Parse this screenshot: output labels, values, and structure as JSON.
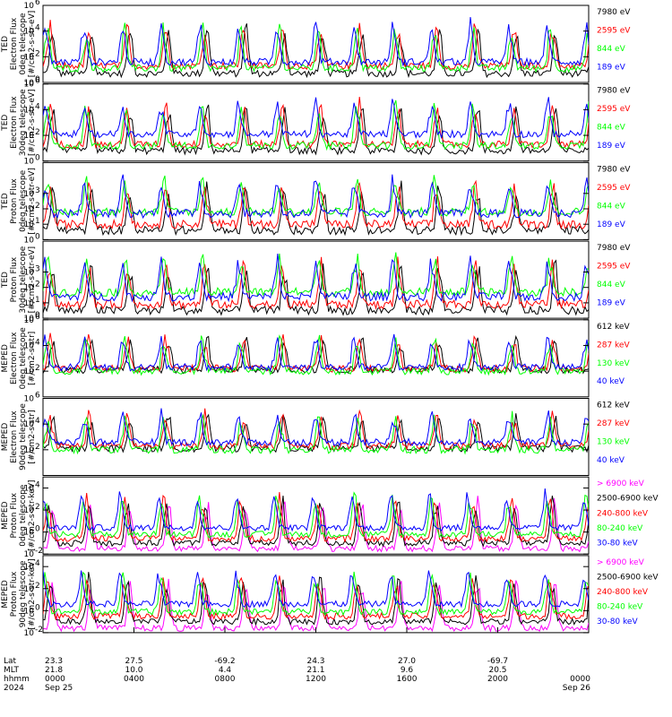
{
  "colors": {
    "black": "#000000",
    "red": "#ff0000",
    "green": "#00ff00",
    "blue": "#0000ff",
    "magenta": "#ff00ff"
  },
  "chart_data": [
    {
      "type": "line",
      "scale": "log",
      "ylim": [
        1,
        1000000
      ],
      "yticks": [
        "10",
        "10",
        "10",
        "10"
      ],
      "yexp": [
        "0",
        "2",
        "4",
        "6"
      ],
      "ylabel": [
        "TED",
        "Electron Flux",
        "0deg telescope",
        "[#/cm2-s-str-eV]"
      ],
      "series": [
        {
          "name": "7980 eV",
          "color": "#000000",
          "base": 0.7
        },
        {
          "name": "2595 eV",
          "color": "#ff0000",
          "base": 1.3
        },
        {
          "name": "844 eV",
          "color": "#00ff00",
          "base": 1.1
        },
        {
          "name": "189 eV",
          "color": "#0000ff",
          "base": 1.6
        }
      ]
    },
    {
      "type": "line",
      "scale": "log",
      "ylim": [
        1,
        1000000
      ],
      "yticks": [
        "10",
        "10",
        "10",
        "10"
      ],
      "yexp": [
        "0",
        "2",
        "4",
        "6"
      ],
      "ylabel": [
        "TED",
        "Electron Flux",
        "30deg telescope",
        "[#/cm2-s-str-eV]"
      ],
      "series": [
        {
          "name": "7980 eV",
          "color": "#000000",
          "base": 0.8
        },
        {
          "name": "2595 eV",
          "color": "#ff0000",
          "base": 1.3
        },
        {
          "name": "844 eV",
          "color": "#00ff00",
          "base": 1.2
        },
        {
          "name": "189 eV",
          "color": "#0000ff",
          "base": 2.1
        }
      ]
    },
    {
      "type": "line",
      "scale": "log",
      "ylim": [
        1,
        100000
      ],
      "yticks": [
        "10",
        "10",
        "10",
        "10"
      ],
      "yexp": [
        "0",
        "1",
        "2",
        "3"
      ],
      "ylabel": [
        "TED",
        "Proton Flux",
        "0deg telescope",
        "[#/cm2-s-str-eV]"
      ],
      "series": [
        {
          "name": "7980 eV",
          "color": "#000000",
          "base": 0.6
        },
        {
          "name": "2595 eV",
          "color": "#ff0000",
          "base": 1.0
        },
        {
          "name": "844 eV",
          "color": "#00ff00",
          "base": 1.8
        },
        {
          "name": "189 eV",
          "color": "#0000ff",
          "base": 1.7
        }
      ]
    },
    {
      "type": "line",
      "scale": "log",
      "ylim": [
        1,
        100000
      ],
      "yticks": [
        "10",
        "10",
        "10",
        "10"
      ],
      "yexp": [
        "0",
        "1",
        "2",
        "3"
      ],
      "ylabel": [
        "TED",
        "Proton Flux",
        "30deg telescope",
        "[#/cm2-s-str-eV]"
      ],
      "series": [
        {
          "name": "7980 eV",
          "color": "#000000",
          "base": 0.5
        },
        {
          "name": "2595 eV",
          "color": "#ff0000",
          "base": 0.9
        },
        {
          "name": "844 eV",
          "color": "#00ff00",
          "base": 1.7
        },
        {
          "name": "189 eV",
          "color": "#0000ff",
          "base": 1.4
        }
      ]
    },
    {
      "type": "line",
      "scale": "log",
      "ylim": [
        1,
        1000000
      ],
      "yticks": [
        "10",
        "10",
        "10"
      ],
      "yexp": [
        "2",
        "4",
        "6"
      ],
      "ylabel": [
        "MEPED",
        "Electron Flux",
        "0deg telescope",
        "[#/cm2-s-str]"
      ],
      "series": [
        {
          "name": "612 keV",
          "color": "#000000",
          "base": 2.1
        },
        {
          "name": "287 keV",
          "color": "#ff0000",
          "base": 2.2
        },
        {
          "name": "130 keV",
          "color": "#00ff00",
          "base": 2.0
        },
        {
          "name": "40 keV",
          "color": "#0000ff",
          "base": 2.3
        }
      ]
    },
    {
      "type": "line",
      "scale": "log",
      "ylim": [
        1,
        1000000
      ],
      "yticks": [
        "10",
        "10",
        "10"
      ],
      "yexp": [
        "2",
        "4",
        "6"
      ],
      "ylabel": [
        "MEPED",
        "Electron Flux",
        "90deg telescope",
        "[#/cm2-s-str]"
      ],
      "series": [
        {
          "name": "612 keV",
          "color": "#000000",
          "base": 2.1
        },
        {
          "name": "287 keV",
          "color": "#ff0000",
          "base": 2.3
        },
        {
          "name": "130 keV",
          "color": "#00ff00",
          "base": 2.0
        },
        {
          "name": "40 keV",
          "color": "#0000ff",
          "base": 2.6
        }
      ]
    },
    {
      "type": "line",
      "scale": "log",
      "ylim": [
        0.01,
        100000
      ],
      "yticks": [
        "10",
        "10",
        "10",
        "10"
      ],
      "yexp": [
        "-2",
        "0",
        "2",
        "4"
      ],
      "ylabel": [
        "MEPED",
        "Proton Flux",
        "0deg telescope",
        "[#/cm2-s-str-keV]"
      ],
      "series": [
        {
          "name": "> 6900 keV",
          "color": "#ff00ff",
          "base": -1.5
        },
        {
          "name": "2500-6900 keV",
          "color": "#000000",
          "base": -1.0
        },
        {
          "name": "240-800 keV",
          "color": "#ff0000",
          "base": -0.6
        },
        {
          "name": "80-240 keV",
          "color": "#00ff00",
          "base": -0.2
        },
        {
          "name": "30-80 keV",
          "color": "#0000ff",
          "base": 0.4
        }
      ]
    },
    {
      "type": "line",
      "scale": "log",
      "ylim": [
        0.01,
        100000
      ],
      "yticks": [
        "10",
        "10",
        "10",
        "10"
      ],
      "yexp": [
        "-2",
        "0",
        "2",
        "4"
      ],
      "ylabel": [
        "MEPED",
        "Proton Flux",
        "90deg telescope",
        "[#/cm2-s-str-keV]"
      ],
      "series": [
        {
          "name": "> 6900 keV",
          "color": "#ff00ff",
          "base": -1.6
        },
        {
          "name": "2500-6900 keV",
          "color": "#000000",
          "base": -1.0
        },
        {
          "name": "240-800 keV",
          "color": "#ff0000",
          "base": -0.5
        },
        {
          "name": "80-240 keV",
          "color": "#00ff00",
          "base": -0.1
        },
        {
          "name": "30-80 keV",
          "color": "#0000ff",
          "base": 0.6
        }
      ]
    }
  ],
  "footer": {
    "row_labels": [
      "Lat",
      "MLT",
      "hhmm",
      "2024"
    ],
    "columns": [
      {
        "lat": "23.3",
        "mlt": "21.8",
        "hhmm": "0000",
        "date": "Sep 25"
      },
      {
        "lat": "27.5",
        "mlt": "10.0",
        "hhmm": "0400",
        "date": ""
      },
      {
        "lat": "-69.2",
        "mlt": "4.4",
        "hhmm": "0800",
        "date": ""
      },
      {
        "lat": "24.3",
        "mlt": "21.1",
        "hhmm": "1200",
        "date": ""
      },
      {
        "lat": "27.0",
        "mlt": "9.6",
        "hhmm": "1600",
        "date": ""
      },
      {
        "lat": "-69.7",
        "mlt": "20.5",
        "hhmm": "2000",
        "date": ""
      },
      {
        "lat": "",
        "mlt": "",
        "hhmm": "0000",
        "date": "Sep 26"
      }
    ]
  }
}
